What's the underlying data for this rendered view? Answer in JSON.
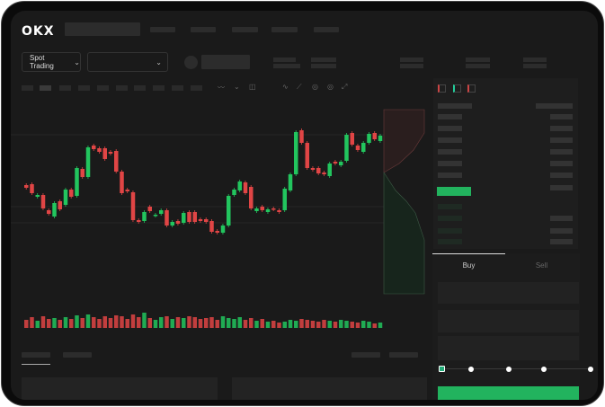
{
  "header": {
    "logo": "OKX"
  },
  "toolbar": {
    "mode_label": "Spot Trading",
    "pair_select_value": ""
  },
  "order_form": {
    "tabs": [
      {
        "label": "Buy",
        "active": true
      },
      {
        "label": "Sell",
        "active": false
      }
    ],
    "leverage_slider_value": 0,
    "submit_color": "#22b35e"
  },
  "colors": {
    "up": "#22c55e",
    "down": "#e04545",
    "background": "#1a1a1a"
  },
  "icons": [
    "orderbook-both-icon",
    "orderbook-bids-icon",
    "orderbook-asks-icon",
    "chevron-down-icon",
    "indicator-icon",
    "draw-line-icon",
    "pencil-icon",
    "settings-icon",
    "fullscreen-icon"
  ],
  "chart_data": {
    "type": "candlestick",
    "title": "",
    "xlabel": "",
    "ylabel": "",
    "candles": [
      [
        96,
        93
      ],
      [
        97,
        87
      ],
      [
        83,
        85
      ],
      [
        85,
        70
      ],
      [
        68,
        64
      ],
      [
        61,
        76
      ],
      [
        78,
        69
      ],
      [
        74,
        91
      ],
      [
        91,
        83
      ],
      [
        84,
        115
      ],
      [
        114,
        105
      ],
      [
        105,
        138
      ],
      [
        140,
        136
      ],
      [
        137,
        133
      ],
      [
        137,
        125
      ],
      [
        133,
        131
      ],
      [
        134,
        111
      ],
      [
        111,
        87
      ],
      [
        91,
        89
      ],
      [
        88,
        57
      ],
      [
        57,
        55
      ],
      [
        56,
        66
      ],
      [
        72,
        67
      ],
      [
        62,
        63
      ],
      [
        64,
        68
      ],
      [
        68,
        51
      ],
      [
        51,
        55
      ],
      [
        56,
        53
      ],
      [
        54,
        65
      ],
      [
        66,
        55
      ],
      [
        66,
        55
      ],
      [
        58,
        56
      ],
      [
        58,
        55
      ],
      [
        56,
        44
      ],
      [
        45,
        43
      ],
      [
        43,
        51
      ],
      [
        51,
        84
      ],
      [
        85,
        91
      ],
      [
        90,
        100
      ],
      [
        99,
        87
      ],
      [
        94,
        70
      ],
      [
        67,
        70
      ],
      [
        72,
        68
      ],
      [
        66,
        69
      ],
      [
        70,
        69
      ],
      [
        68,
        66
      ],
      [
        68,
        92
      ],
      [
        90,
        108
      ],
      [
        108,
        155
      ],
      [
        157,
        143
      ],
      [
        143,
        115
      ],
      [
        115,
        113
      ],
      [
        115,
        109
      ],
      [
        110,
        108
      ],
      [
        106,
        120
      ],
      [
        122,
        120
      ],
      [
        118,
        122
      ],
      [
        123,
        152
      ],
      [
        154,
        141
      ],
      [
        140,
        135
      ],
      [
        133,
        143
      ],
      [
        143,
        153
      ],
      [
        154,
        147
      ],
      [
        145,
        151
      ]
    ],
    "volumes": [
      9,
      12,
      8,
      13,
      10,
      11,
      9,
      12,
      10,
      14,
      11,
      15,
      12,
      10,
      13,
      11,
      14,
      13,
      10,
      15,
      12,
      17,
      11,
      9,
      12,
      13,
      10,
      12,
      11,
      13,
      12,
      10,
      11,
      12,
      9,
      13,
      11,
      10,
      12,
      9,
      11,
      8,
      10,
      7,
      8,
      6,
      7,
      9,
      8,
      10,
      9,
      8,
      7,
      9,
      8,
      7,
      9,
      8,
      7,
      6,
      8,
      7,
      5,
      6
    ]
  }
}
